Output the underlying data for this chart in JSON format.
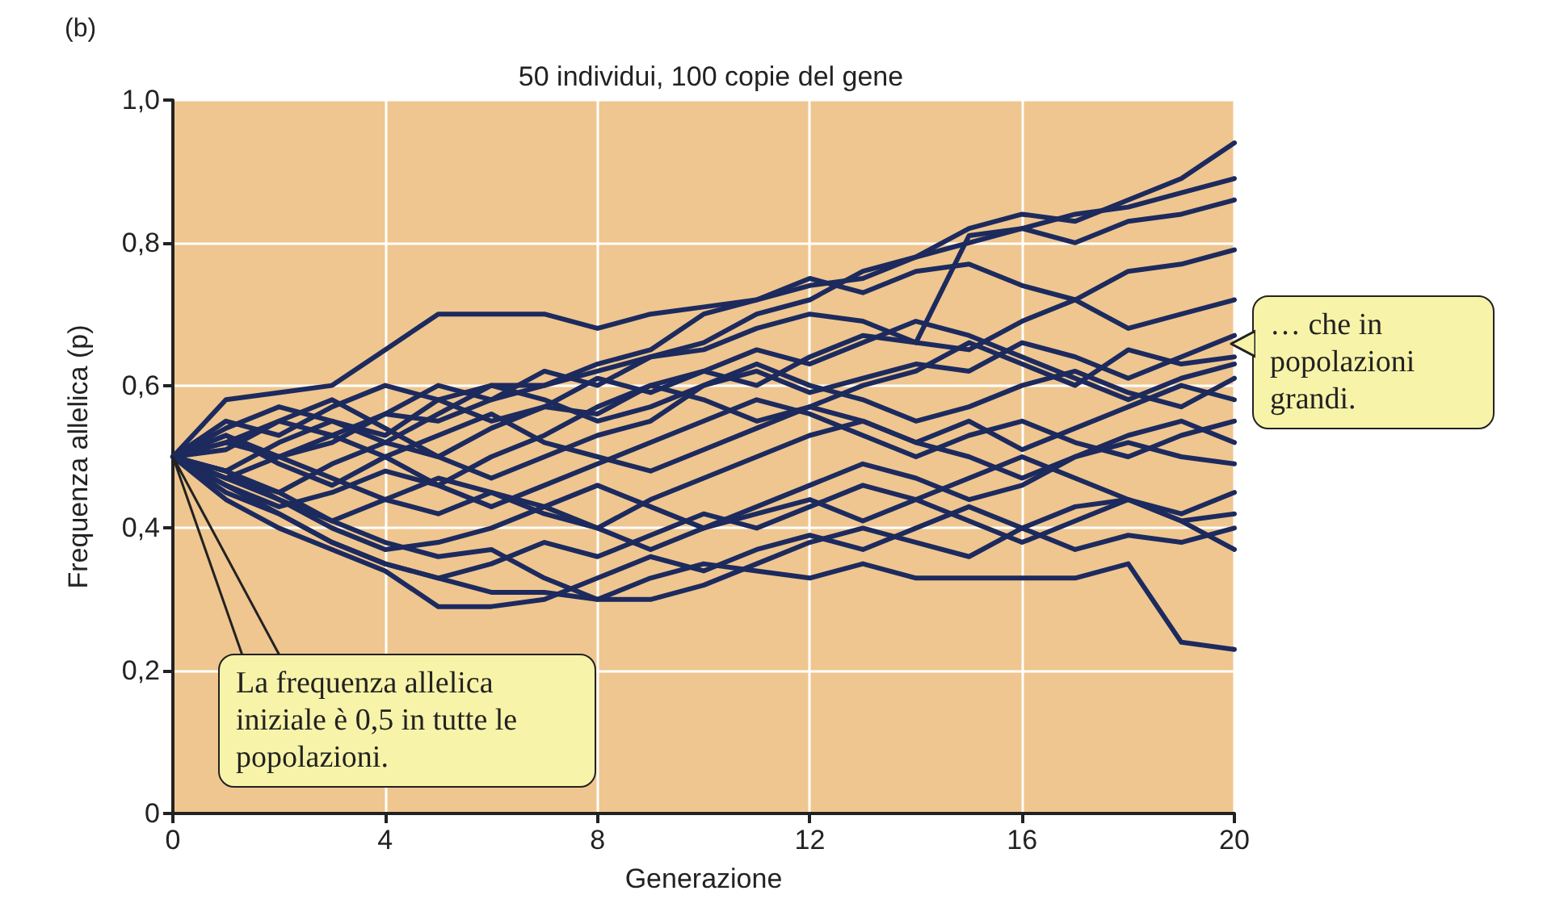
{
  "chart_data": {
    "type": "line",
    "title": "50 individui, 100 copie del gene",
    "xlabel": "Generazione",
    "ylabel": "Frequenza allelica (p)",
    "annotations": [
      "(b)",
      "La frequenza allelica iniziale è 0,5 in tutte le popolazioni.",
      "… che in popolazioni grandi."
    ],
    "x": [
      0,
      1,
      2,
      3,
      4,
      5,
      6,
      7,
      8,
      9,
      10,
      11,
      12,
      13,
      14,
      15,
      16,
      17,
      18,
      19,
      20
    ],
    "xlim": [
      0,
      20
    ],
    "xticks": [
      0,
      4,
      8,
      12,
      16,
      20
    ],
    "ylim": [
      0,
      1
    ],
    "yticks": [
      {
        "value": 0,
        "label": "0"
      },
      {
        "value": 0.2,
        "label": "0,2"
      },
      {
        "value": 0.4,
        "label": "0,4"
      },
      {
        "value": 0.6,
        "label": "0,6"
      },
      {
        "value": 0.8,
        "label": "0,8"
      },
      {
        "value": 1,
        "label": "1,0"
      }
    ],
    "grid": true,
    "marker": "none",
    "line_style": "solid",
    "series": [
      {
        "color": "#1c2a5e",
        "values": [
          0.5,
          0.52,
          0.55,
          0.53,
          0.56,
          0.6,
          0.58,
          0.62,
          0.6,
          0.64,
          0.66,
          0.7,
          0.72,
          0.76,
          0.78,
          0.82,
          0.84,
          0.83,
          0.86,
          0.89,
          0.94
        ]
      },
      {
        "color": "#1c2a5e",
        "values": [
          0.5,
          0.58,
          0.59,
          0.6,
          0.65,
          0.7,
          0.7,
          0.7,
          0.68,
          0.7,
          0.71,
          0.72,
          0.74,
          0.75,
          0.78,
          0.8,
          0.82,
          0.84,
          0.85,
          0.87,
          0.89
        ]
      },
      {
        "color": "#1c2a5e",
        "values": [
          0.5,
          0.48,
          0.52,
          0.55,
          0.53,
          0.58,
          0.6,
          0.6,
          0.62,
          0.64,
          0.65,
          0.68,
          0.7,
          0.69,
          0.66,
          0.81,
          0.82,
          0.8,
          0.83,
          0.84,
          0.86
        ]
      },
      {
        "color": "#1c2a5e",
        "values": [
          0.5,
          0.53,
          0.5,
          0.52,
          0.56,
          0.55,
          0.58,
          0.6,
          0.63,
          0.65,
          0.7,
          0.72,
          0.75,
          0.73,
          0.76,
          0.77,
          0.74,
          0.72,
          0.76,
          0.77,
          0.79
        ]
      },
      {
        "color": "#1c2a5e",
        "values": [
          0.5,
          0.47,
          0.45,
          0.49,
          0.52,
          0.5,
          0.54,
          0.57,
          0.56,
          0.6,
          0.62,
          0.6,
          0.64,
          0.67,
          0.66,
          0.65,
          0.69,
          0.72,
          0.68,
          0.7,
          0.72
        ]
      },
      {
        "color": "#1c2a5e",
        "values": [
          0.5,
          0.54,
          0.57,
          0.55,
          0.52,
          0.56,
          0.6,
          0.58,
          0.55,
          0.57,
          0.6,
          0.62,
          0.59,
          0.61,
          0.63,
          0.62,
          0.66,
          0.64,
          0.61,
          0.64,
          0.67
        ]
      },
      {
        "color": "#1c2a5e",
        "values": [
          0.5,
          0.46,
          0.43,
          0.45,
          0.48,
          0.46,
          0.5,
          0.53,
          0.57,
          0.6,
          0.58,
          0.55,
          0.57,
          0.6,
          0.62,
          0.66,
          0.63,
          0.6,
          0.65,
          0.63,
          0.64
        ]
      },
      {
        "color": "#1c2a5e",
        "values": [
          0.5,
          0.51,
          0.55,
          0.58,
          0.54,
          0.5,
          0.47,
          0.5,
          0.53,
          0.55,
          0.6,
          0.63,
          0.6,
          0.58,
          0.55,
          0.57,
          0.6,
          0.62,
          0.59,
          0.57,
          0.61
        ]
      },
      {
        "color": "#1c2a5e",
        "values": [
          0.5,
          0.53,
          0.49,
          0.46,
          0.5,
          0.53,
          0.56,
          0.52,
          0.5,
          0.48,
          0.51,
          0.54,
          0.57,
          0.55,
          0.52,
          0.55,
          0.51,
          0.54,
          0.57,
          0.6,
          0.58
        ]
      },
      {
        "color": "#1c2a5e",
        "values": [
          0.5,
          0.47,
          0.5,
          0.53,
          0.5,
          0.46,
          0.43,
          0.46,
          0.49,
          0.52,
          0.55,
          0.58,
          0.56,
          0.53,
          0.5,
          0.53,
          0.55,
          0.52,
          0.5,
          0.53,
          0.55
        ]
      },
      {
        "color": "#1c2a5e",
        "values": [
          0.5,
          0.52,
          0.5,
          0.47,
          0.44,
          0.42,
          0.45,
          0.42,
          0.4,
          0.44,
          0.47,
          0.5,
          0.53,
          0.55,
          0.52,
          0.5,
          0.47,
          0.5,
          0.53,
          0.55,
          0.52
        ]
      },
      {
        "color": "#1c2a5e",
        "values": [
          0.5,
          0.48,
          0.44,
          0.41,
          0.44,
          0.47,
          0.45,
          0.43,
          0.46,
          0.43,
          0.4,
          0.43,
          0.46,
          0.49,
          0.47,
          0.44,
          0.46,
          0.5,
          0.52,
          0.5,
          0.49
        ]
      },
      {
        "color": "#1c2a5e",
        "values": [
          0.5,
          0.47,
          0.44,
          0.4,
          0.37,
          0.38,
          0.4,
          0.43,
          0.4,
          0.37,
          0.4,
          0.42,
          0.44,
          0.41,
          0.44,
          0.47,
          0.5,
          0.47,
          0.44,
          0.42,
          0.45
        ]
      },
      {
        "color": "#1c2a5e",
        "values": [
          0.5,
          0.45,
          0.42,
          0.38,
          0.35,
          0.33,
          0.35,
          0.38,
          0.36,
          0.39,
          0.42,
          0.4,
          0.43,
          0.46,
          0.44,
          0.41,
          0.38,
          0.41,
          0.44,
          0.41,
          0.42
        ]
      },
      {
        "color": "#1c2a5e",
        "values": [
          0.5,
          0.44,
          0.4,
          0.37,
          0.34,
          0.29,
          0.29,
          0.3,
          0.33,
          0.36,
          0.34,
          0.37,
          0.39,
          0.37,
          0.4,
          0.43,
          0.4,
          0.37,
          0.39,
          0.38,
          0.4
        ]
      },
      {
        "color": "#1c2a5e",
        "values": [
          0.5,
          0.48,
          0.45,
          0.41,
          0.38,
          0.36,
          0.37,
          0.33,
          0.3,
          0.3,
          0.32,
          0.35,
          0.38,
          0.4,
          0.38,
          0.36,
          0.4,
          0.43,
          0.44,
          0.41,
          0.37
        ]
      },
      {
        "color": "#1c2a5e",
        "values": [
          0.5,
          0.46,
          0.42,
          0.38,
          0.35,
          0.33,
          0.31,
          0.31,
          0.3,
          0.33,
          0.35,
          0.34,
          0.33,
          0.35,
          0.33,
          0.33,
          0.33,
          0.33,
          0.35,
          0.24,
          0.23
        ]
      },
      {
        "color": "#1c2a5e",
        "values": [
          0.5,
          0.55,
          0.53,
          0.57,
          0.6,
          0.58,
          0.55,
          0.57,
          0.61,
          0.59,
          0.62,
          0.65,
          0.63,
          0.66,
          0.69,
          0.67,
          0.64,
          0.61,
          0.58,
          0.61,
          0.63
        ]
      }
    ]
  }
}
